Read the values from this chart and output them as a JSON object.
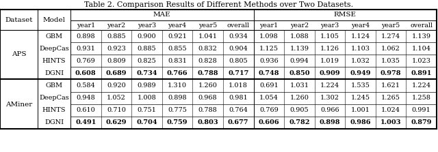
{
  "title": "Table 2. Comparison Results of Different Methods over Two Datasets.",
  "datasets": [
    "APS",
    "AMiner"
  ],
  "models": [
    "GBM",
    "DeepCas",
    "HINTS",
    "DGNI"
  ],
  "col_groups": [
    "MAE",
    "RMSE"
  ],
  "sub_cols": [
    "year1",
    "year2",
    "year3",
    "year4",
    "year5",
    "overall"
  ],
  "data": {
    "APS": {
      "GBM": {
        "MAE": [
          0.898,
          0.885,
          0.9,
          0.921,
          1.041,
          0.934
        ],
        "RMSE": [
          1.098,
          1.088,
          1.105,
          1.124,
          1.274,
          1.139
        ]
      },
      "DeepCas": {
        "MAE": [
          0.931,
          0.923,
          0.885,
          0.855,
          0.832,
          0.904
        ],
        "RMSE": [
          1.125,
          1.139,
          1.126,
          1.103,
          1.062,
          1.104
        ]
      },
      "HINTS": {
        "MAE": [
          0.769,
          0.809,
          0.825,
          0.831,
          0.828,
          0.805
        ],
        "RMSE": [
          0.936,
          0.994,
          1.019,
          1.032,
          1.035,
          1.023
        ]
      },
      "DGNI": {
        "MAE": [
          0.608,
          0.689,
          0.734,
          0.766,
          0.788,
          0.717
        ],
        "RMSE": [
          0.748,
          0.85,
          0.909,
          0.949,
          0.978,
          0.891
        ]
      }
    },
    "AMiner": {
      "GBM": {
        "MAE": [
          0.584,
          0.92,
          0.989,
          1.31,
          1.26,
          1.018
        ],
        "RMSE": [
          0.691,
          1.031,
          1.224,
          1.535,
          1.621,
          1.224
        ]
      },
      "DeepCas": {
        "MAE": [
          0.948,
          1.052,
          1.008,
          0.898,
          0.968,
          0.981
        ],
        "RMSE": [
          1.054,
          1.26,
          1.302,
          1.245,
          1.265,
          1.258
        ]
      },
      "HINTS": {
        "MAE": [
          0.61,
          0.71,
          0.751,
          0.775,
          0.788,
          0.764
        ],
        "RMSE": [
          0.769,
          0.905,
          0.966,
          1.001,
          1.024,
          0.991
        ]
      },
      "DGNI": {
        "MAE": [
          0.491,
          0.629,
          0.704,
          0.759,
          0.803,
          0.677
        ],
        "RMSE": [
          0.606,
          0.782,
          0.898,
          0.986,
          1.003,
          0.879
        ]
      }
    }
  },
  "bold_row": "DGNI",
  "bg_color": "#ffffff",
  "title_fontsize": 8.0,
  "cell_fontsize": 7.0,
  "header_fontsize": 7.5
}
